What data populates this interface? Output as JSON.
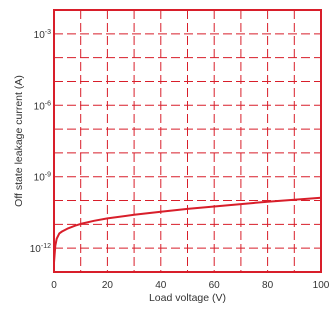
{
  "chart_data": {
    "type": "line",
    "title": "",
    "xlabel": "Load voltage (V)",
    "ylabel": "Off state leakage current (A)",
    "xlim": [
      0,
      100
    ],
    "ylim_exponent": [
      -13,
      -2
    ],
    "y_scale": "log",
    "grid": true,
    "x_ticks": [
      0,
      20,
      40,
      60,
      80,
      100
    ],
    "x_tick_labels": [
      "0",
      "20",
      "40",
      "60",
      "80",
      "100"
    ],
    "y_ticks_exponent": [
      -12,
      -9,
      -6,
      -3
    ],
    "y_tick_labels": [
      {
        "base": "10",
        "exp": "-12"
      },
      {
        "base": "10",
        "exp": "-9"
      },
      {
        "base": "10",
        "exp": "-6"
      },
      {
        "base": "10",
        "exp": "-3"
      }
    ],
    "series": [
      {
        "color": "#d81e2a",
        "x": [
          0,
          0.5,
          1,
          2,
          3,
          5,
          8,
          10,
          15,
          20,
          30,
          40,
          50,
          60,
          70,
          80,
          90,
          100
        ],
        "y_exponent": [
          -12.6,
          -11.9,
          -11.6,
          -11.38,
          -11.3,
          -11.18,
          -11.05,
          -10.98,
          -10.85,
          -10.75,
          -10.6,
          -10.47,
          -10.35,
          -10.25,
          -10.15,
          -10.05,
          -9.97,
          -9.88
        ]
      }
    ],
    "colors": {
      "axes": "#d81e2a",
      "grid": "#d81e2a",
      "curve": "#d81e2a"
    }
  }
}
